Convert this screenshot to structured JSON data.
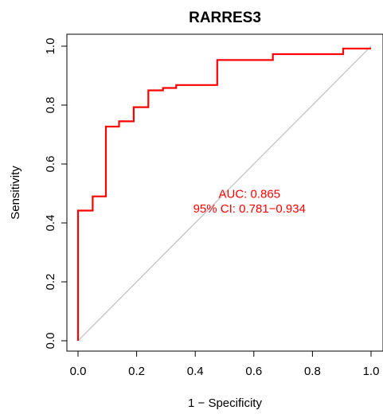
{
  "chart_data": {
    "type": "line",
    "title": "RARRES3",
    "xlabel": "1 − Specificity",
    "ylabel": "Sensitivity",
    "xlim": [
      0,
      1
    ],
    "ylim": [
      0,
      1
    ],
    "x_ticks": [
      "0.0",
      "0.2",
      "0.4",
      "0.6",
      "0.8",
      "1.0"
    ],
    "y_ticks": [
      "0.0",
      "0.2",
      "0.4",
      "0.6",
      "0.8",
      "1.0"
    ],
    "grid": false,
    "series": [
      {
        "color": "#ff0000",
        "x": [
          0,
          0,
          0.05,
          0.05,
          0.095,
          0.095,
          0.14,
          0.14,
          0.19,
          0.19,
          0.24,
          0.24,
          0.29,
          0.29,
          0.335,
          0.335,
          0.475,
          0.475,
          0.665,
          0.665,
          0.905,
          0.905,
          1.0
        ],
        "y": [
          0,
          0.442,
          0.442,
          0.49,
          0.49,
          0.727,
          0.727,
          0.745,
          0.745,
          0.793,
          0.793,
          0.85,
          0.85,
          0.858,
          0.858,
          0.868,
          0.868,
          0.953,
          0.953,
          0.973,
          0.973,
          0.992,
          0.992
        ]
      }
    ],
    "reference_line": {
      "x": [
        0,
        1
      ],
      "y": [
        0,
        1
      ],
      "color": "#bebebe"
    },
    "annotations": [
      {
        "text": "AUC: 0.865",
        "x": 0.585,
        "y": 0.485,
        "color": "#ff0000"
      },
      {
        "text": "95% CI: 0.781−0.934",
        "x": 0.585,
        "y": 0.435,
        "color": "#ff0000"
      }
    ]
  }
}
